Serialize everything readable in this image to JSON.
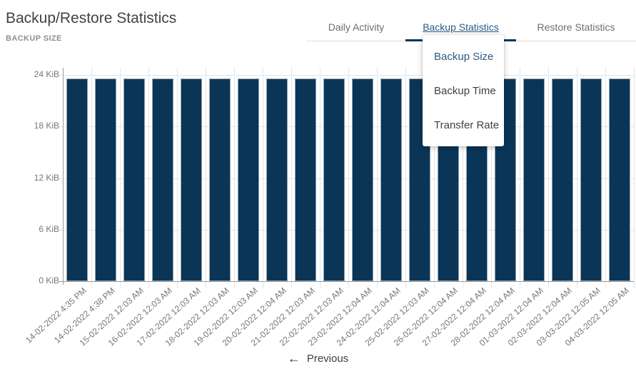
{
  "header": {
    "title": "Backup/Restore Statistics",
    "section_label": "BACKUP SIZE"
  },
  "tabs": [
    {
      "label": "Daily Activity",
      "active": false
    },
    {
      "label": "Backup Statistics",
      "active": true
    },
    {
      "label": "Restore Statistics",
      "active": false
    }
  ],
  "dropdown": {
    "items": [
      {
        "label": "Backup Size",
        "selected": true
      },
      {
        "label": "Backup Time",
        "selected": false
      },
      {
        "label": "Transfer Rate",
        "selected": false
      }
    ]
  },
  "chart_data": {
    "type": "bar",
    "title": "BACKUP SIZE",
    "categories": [
      "14-02-2022 4:35 PM",
      "14-02-2022 4:38 PM",
      "15-02-2022 12:03 AM",
      "16-02-2022 12:03 AM",
      "17-02-2022 12:03 AM",
      "18-02-2022 12:03 AM",
      "19-02-2022 12:03 AM",
      "20-02-2022 12:04 AM",
      "21-02-2022 12:03 AM",
      "22-02-2022 12:03 AM",
      "23-02-2022 12:04 AM",
      "24-02-2022 12:04 AM",
      "25-02-2022 12:03 AM",
      "26-02-2022 12:04 AM",
      "27-02-2022 12:04 AM",
      "28-02-2022 12:04 AM",
      "01-03-2022 12:04 AM",
      "02-03-2022 12:04 AM",
      "03-03-2022 12:05 AM",
      "04-03-2022 12:05 AM"
    ],
    "values": [
      23.6,
      23.6,
      23.6,
      23.6,
      23.6,
      23.6,
      23.6,
      23.6,
      23.6,
      23.6,
      23.6,
      23.6,
      23.6,
      23.6,
      23.6,
      23.6,
      23.6,
      23.6,
      23.6,
      23.6
    ],
    "xlabel": "",
    "ylabel": "",
    "ylim": [
      0,
      24
    ],
    "yticks": [
      {
        "label": "24 KiB",
        "value": 24
      },
      {
        "label": "18 KiB",
        "value": 18
      },
      {
        "label": "12 KiB",
        "value": 12
      },
      {
        "label": "6 KiB",
        "value": 6
      },
      {
        "label": "0 KiB",
        "value": 0
      }
    ],
    "grid": "horizontal-and-vertical",
    "legend": "none",
    "bar_color": "#0a3557"
  },
  "colors": {
    "navy": "#0a3557",
    "accent_text": "#2b5a83",
    "gridline": "#e3e3e3",
    "axis": "#9c9c9c"
  },
  "footer": {
    "arrow_icon": "←",
    "previous_label": "Previous"
  }
}
